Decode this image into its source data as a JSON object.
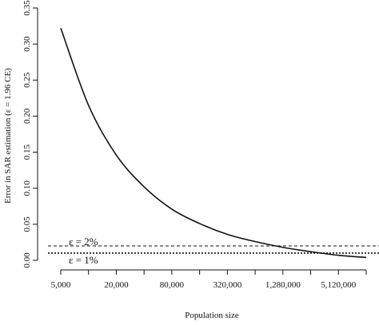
{
  "chart_data": {
    "type": "line",
    "xlabel": "Population size",
    "ylabel": "Error in SAR estimation (ε = 1.96 CE)",
    "x_scale": "log",
    "x_ticks": [
      5000,
      10000,
      20000,
      40000,
      80000,
      160000,
      320000,
      640000,
      1280000,
      2560000,
      5120000,
      10240000
    ],
    "x_tick_labels": [
      {
        "value": 5000,
        "label": "5,000"
      },
      {
        "value": 20000,
        "label": "20,000"
      },
      {
        "value": 80000,
        "label": "80,000"
      },
      {
        "value": 320000,
        "label": "320,000"
      },
      {
        "value": 1280000,
        "label": "1,280,000"
      },
      {
        "value": 5120000,
        "label": "5,120,000"
      }
    ],
    "y_ticks": [
      {
        "value": 0.0,
        "label": "0.00"
      },
      {
        "value": 0.05,
        "label": "0.05"
      },
      {
        "value": 0.1,
        "label": "0.10"
      },
      {
        "value": 0.15,
        "label": "0.15"
      },
      {
        "value": 0.2,
        "label": "0.20"
      },
      {
        "value": 0.25,
        "label": "0.25"
      },
      {
        "value": 0.3,
        "label": "0.30"
      },
      {
        "value": 0.35,
        "label": "0.35"
      }
    ],
    "ylim": [
      0,
      0.35
    ],
    "grid": false,
    "series": [
      {
        "x": [
          5000,
          10000,
          20000,
          40000,
          80000,
          160000,
          320000,
          640000,
          1280000,
          2560000,
          5120000,
          10240000
        ],
        "y": [
          0.322,
          0.215,
          0.146,
          0.102,
          0.071,
          0.051,
          0.036,
          0.026,
          0.018,
          0.012,
          0.007,
          0.004
        ]
      }
    ],
    "reference_lines": [
      {
        "y": 0.02,
        "label": "ε = 2%",
        "style": "dashed"
      },
      {
        "y": 0.01,
        "label": "ε = 1%",
        "style": "dotted"
      }
    ]
  }
}
